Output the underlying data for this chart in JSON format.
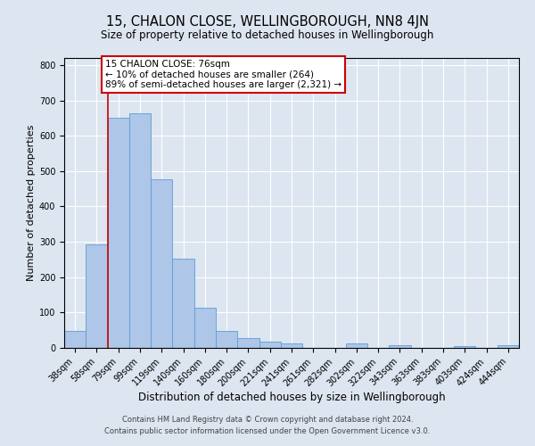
{
  "title": "15, CHALON CLOSE, WELLINGBOROUGH, NN8 4JN",
  "subtitle": "Size of property relative to detached houses in Wellingborough",
  "xlabel": "Distribution of detached houses by size in Wellingborough",
  "ylabel": "Number of detached properties",
  "bar_labels": [
    "38sqm",
    "58sqm",
    "79sqm",
    "99sqm",
    "119sqm",
    "140sqm",
    "160sqm",
    "180sqm",
    "200sqm",
    "221sqm",
    "241sqm",
    "261sqm",
    "282sqm",
    "302sqm",
    "322sqm",
    "343sqm",
    "363sqm",
    "383sqm",
    "403sqm",
    "424sqm",
    "444sqm"
  ],
  "bar_values": [
    47,
    293,
    651,
    663,
    477,
    253,
    113,
    48,
    28,
    17,
    12,
    0,
    0,
    13,
    0,
    8,
    0,
    0,
    5,
    0,
    7
  ],
  "bar_color": "#aec6e8",
  "bar_edge_color": "#5a9fd4",
  "vline_x_index": 2,
  "vline_color": "#cc0000",
  "annotation_text": "15 CHALON CLOSE: 76sqm\n← 10% of detached houses are smaller (264)\n89% of semi-detached houses are larger (2,321) →",
  "annotation_box_color": "#ffffff",
  "annotation_box_edge": "#cc0000",
  "ylim": [
    0,
    820
  ],
  "yticks": [
    0,
    100,
    200,
    300,
    400,
    500,
    600,
    700,
    800
  ],
  "footer_line1": "Contains HM Land Registry data © Crown copyright and database right 2024.",
  "footer_line2": "Contains public sector information licensed under the Open Government Licence v3.0.",
  "background_color": "#dde5f0",
  "plot_background": "#dde5f0",
  "grid_color": "#ffffff",
  "title_fontsize": 10.5,
  "subtitle_fontsize": 8.5,
  "xlabel_fontsize": 8.5,
  "ylabel_fontsize": 8,
  "tick_fontsize": 7,
  "annotation_fontsize": 7.5,
  "footer_fontsize": 6
}
